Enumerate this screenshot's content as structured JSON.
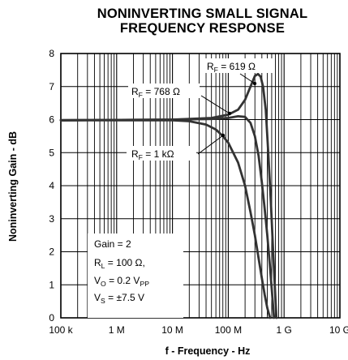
{
  "chart_data": {
    "type": "line",
    "title_lines": [
      "NONINVERTING SMALL SIGNAL",
      "FREQUENCY RESPONSE"
    ],
    "xlabel": "f - Frequency - Hz",
    "ylabel": "Noninverting Gain - dB",
    "x_scale": "log",
    "xlim": [
      100000,
      10000000000
    ],
    "ylim": [
      0,
      8
    ],
    "x_tick_values": [
      100000,
      1000000,
      10000000,
      100000000,
      1000000000,
      10000000000
    ],
    "x_tick_labels": [
      "100 k",
      "1 M",
      "10 M",
      "100 M",
      "1 G",
      "10 G"
    ],
    "y_ticks": [
      0,
      1,
      2,
      3,
      4,
      5,
      6,
      7,
      8
    ],
    "grid": true,
    "series": [
      {
        "name": "RF = 619 Ω",
        "color": "#333333",
        "x": [
          100000,
          10000000,
          50000000,
          100000000,
          150000000,
          200000000,
          250000000,
          300000000,
          340000000,
          380000000,
          420000000,
          470000000,
          520000000,
          580000000,
          650000000,
          700000000,
          730000000
        ],
        "y": [
          5.98,
          6.0,
          6.05,
          6.15,
          6.3,
          6.6,
          7.0,
          7.32,
          7.38,
          7.3,
          7.0,
          6.3,
          5.0,
          3.5,
          1.7,
          0.6,
          0.0
        ]
      },
      {
        "name": "RF = 768 Ω",
        "color": "#333333",
        "x": [
          100000,
          10000000,
          50000000,
          100000000,
          150000000,
          200000000,
          250000000,
          300000000,
          350000000,
          400000000,
          450000000,
          500000000,
          550000000,
          600000000,
          660000000
        ],
        "y": [
          5.98,
          6.0,
          6.02,
          6.05,
          6.1,
          6.08,
          5.9,
          5.5,
          4.9,
          4.1,
          3.3,
          2.5,
          1.7,
          0.9,
          0.0
        ]
      },
      {
        "name": "RF = 1 kΩ",
        "color": "#333333",
        "x": [
          100000,
          10000000,
          20000000,
          40000000,
          60000000,
          80000000,
          100000000,
          150000000,
          200000000,
          250000000,
          300000000,
          350000000,
          400000000,
          450000000,
          500000000,
          560000000
        ],
        "y": [
          5.98,
          5.98,
          5.95,
          5.85,
          5.7,
          5.5,
          5.3,
          4.7,
          4.0,
          3.2,
          2.5,
          1.8,
          1.2,
          0.7,
          0.3,
          0.0
        ]
      }
    ],
    "annotations": [
      {
        "main": "R",
        "sub": "F",
        "rest": " = 619 Ω"
      },
      {
        "main": "R",
        "sub": "F",
        "rest": " = 768 Ω"
      },
      {
        "main": "R",
        "sub": "F",
        "rest": " = 1 kΩ"
      }
    ],
    "conditions": [
      {
        "main": "Gain = 2",
        "sub": "",
        "rest": ""
      },
      {
        "main": "R",
        "sub": "L",
        "rest": " = 100 Ω,"
      },
      {
        "main": "V",
        "sub": "O",
        "rest": " = 0.2 V",
        "sub2": "PP"
      },
      {
        "main": "V",
        "sub": "S",
        "rest": " = ±7.5 V"
      }
    ]
  }
}
